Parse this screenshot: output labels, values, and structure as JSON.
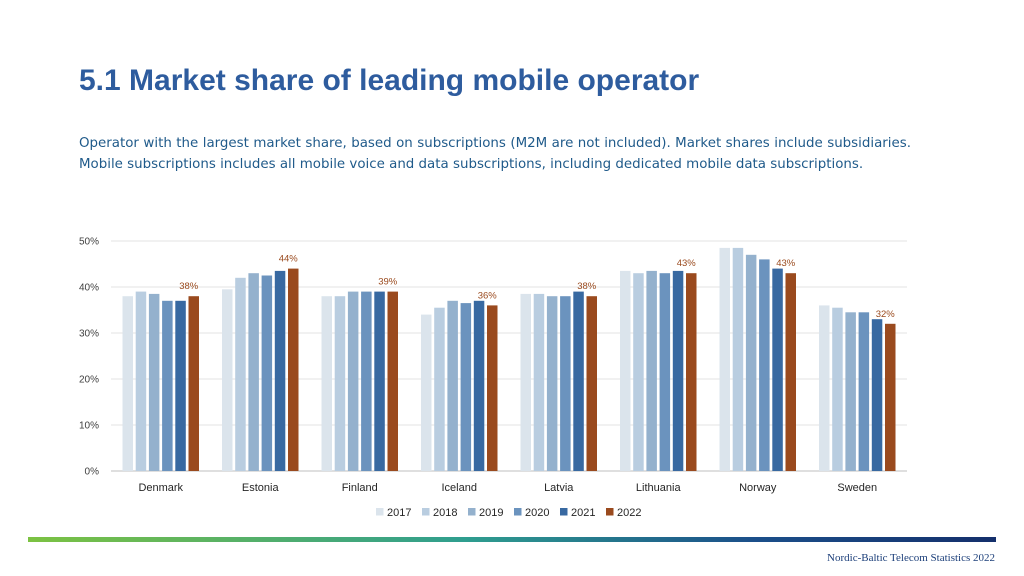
{
  "header": {
    "title": "5.1 Market share of leading mobile operator",
    "subtitle": "Operator with the largest market share, based on subscriptions (M2M are not included). Market shares include subsidiaries. Mobile subscriptions includes all mobile voice and data subscriptions, including dedicated mobile data subscriptions."
  },
  "footer": {
    "text": "Nordic-Baltic Telecom Statistics 2022"
  },
  "chart_data": {
    "type": "bar",
    "title": "",
    "xlabel": "",
    "ylabel": "",
    "ylim": [
      0,
      50
    ],
    "yticks": [
      "0%",
      "10%",
      "20%",
      "30%",
      "40%",
      "50%"
    ],
    "grid": true,
    "legend_position": "bottom",
    "categories": [
      "Denmark",
      "Estonia",
      "Finland",
      "Iceland",
      "Latvia",
      "Lithuania",
      "Norway",
      "Sweden"
    ],
    "series": [
      {
        "name": "2017",
        "color": "#dbe4ec",
        "values": [
          38,
          39.5,
          38,
          34,
          38.5,
          43.5,
          48.5,
          36
        ]
      },
      {
        "name": "2018",
        "color": "#b9cde0",
        "values": [
          39,
          42,
          38,
          35.5,
          38.5,
          43,
          48.5,
          35.5
        ]
      },
      {
        "name": "2019",
        "color": "#94b1cd",
        "values": [
          38.5,
          43,
          39,
          37,
          38,
          43.5,
          47,
          34.5
        ]
      },
      {
        "name": "2020",
        "color": "#6b93be",
        "values": [
          37,
          42.5,
          39,
          36.5,
          38,
          43,
          46,
          34.5
        ]
      },
      {
        "name": "2021",
        "color": "#3869a1",
        "values": [
          37,
          43.5,
          39,
          37,
          39,
          43.5,
          44,
          33
        ]
      },
      {
        "name": "2022",
        "color": "#9a4a1e",
        "values": [
          38,
          44,
          39,
          36,
          38,
          43,
          43,
          32
        ]
      }
    ],
    "data_labels": {
      "series": "2022",
      "color": "#9a4a1e",
      "labels": [
        "38%",
        "44%",
        "39%",
        "36%",
        "38%",
        "43%",
        "43%",
        "32%"
      ]
    }
  }
}
